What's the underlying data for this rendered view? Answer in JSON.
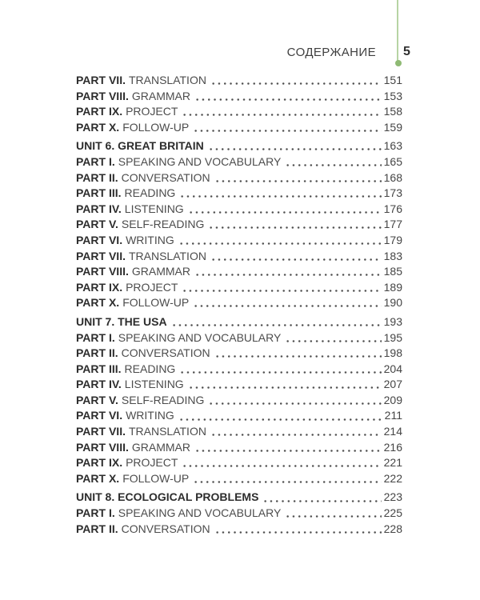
{
  "header": {
    "title": "СОДЕРЖАНИЕ",
    "page_number": "5"
  },
  "accent": {
    "line_color": "#b7d4a4",
    "dot_color": "#8fba74"
  },
  "toc": {
    "blocks": [
      {
        "entries": [
          {
            "label": "PART VII.",
            "title": "TRANSLATION",
            "page": "151"
          },
          {
            "label": "PART VIII.",
            "title": "GRAMMAR",
            "page": "153"
          },
          {
            "label": "PART IX.",
            "title": "PROJECT",
            "page": "158"
          },
          {
            "label": "PART X.",
            "title": "FOLLOW-UP",
            "page": "159"
          }
        ]
      },
      {
        "entries": [
          {
            "label": "UNIT 6. GREAT BRITAIN",
            "title": "",
            "page": "163",
            "unit": true
          },
          {
            "label": "PART I.",
            "title": "SPEAKING AND VOCABULARY",
            "page": "165"
          },
          {
            "label": "PART II.",
            "title": "CONVERSATION",
            "page": "168"
          },
          {
            "label": "PART III.",
            "title": "READING",
            "page": "173"
          },
          {
            "label": "PART IV.",
            "title": "LISTENING",
            "page": "176"
          },
          {
            "label": "PART V.",
            "title": "SELF-READING",
            "page": "177"
          },
          {
            "label": "PART VI.",
            "title": "WRITING",
            "page": "179"
          },
          {
            "label": "PART VII.",
            "title": "TRANSLATION",
            "page": "183"
          },
          {
            "label": "PART VIII.",
            "title": "GRAMMAR",
            "page": "185"
          },
          {
            "label": "PART IX.",
            "title": "PROJECT",
            "page": "189"
          },
          {
            "label": "PART X.",
            "title": "FOLLOW-UP",
            "page": "190"
          }
        ]
      },
      {
        "entries": [
          {
            "label": "UNIT 7. THE USA",
            "title": "",
            "page": "193",
            "unit": true
          },
          {
            "label": "PART I.",
            "title": "SPEAKING AND VOCABULARY",
            "page": "195"
          },
          {
            "label": "PART II.",
            "title": "CONVERSATION",
            "page": "198"
          },
          {
            "label": "PART III.",
            "title": "READING",
            "page": "204"
          },
          {
            "label": "PART IV.",
            "title": "LISTENING",
            "page": "207"
          },
          {
            "label": "PART V.",
            "title": "SELF-READING",
            "page": "209"
          },
          {
            "label": "PART VI.",
            "title": "WRITING",
            "page": "211"
          },
          {
            "label": "PART VII.",
            "title": "TRANSLATION",
            "page": "214"
          },
          {
            "label": "PART VIII.",
            "title": "GRAMMAR",
            "page": "216"
          },
          {
            "label": "PART IX.",
            "title": "PROJECT",
            "page": "221"
          },
          {
            "label": "PART X.",
            "title": "FOLLOW-UP",
            "page": "222"
          }
        ]
      },
      {
        "entries": [
          {
            "label": "UNIT 8. ECOLOGICAL PROBLEMS",
            "title": "",
            "page": "223",
            "unit": true
          },
          {
            "label": "PART I.",
            "title": "SPEAKING AND VOCABULARY",
            "page": "225"
          },
          {
            "label": "PART II.",
            "title": "CONVERSATION",
            "page": "228"
          }
        ]
      }
    ]
  }
}
